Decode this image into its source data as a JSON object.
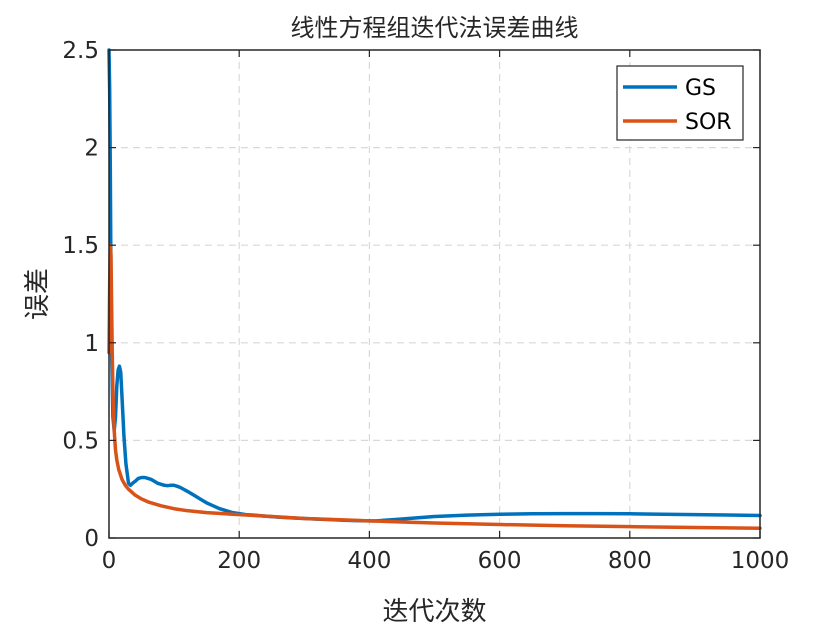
{
  "chart_data": {
    "type": "line",
    "title": "线性方程组迭代法误差曲线",
    "xlabel": "迭代次数",
    "ylabel": "误差",
    "xlim": [
      0,
      1000
    ],
    "ylim": [
      0,
      2.5
    ],
    "xticks": [
      "0",
      "200",
      "400",
      "600",
      "800",
      "1000"
    ],
    "yticks": [
      "0",
      "0.5",
      "1",
      "1.5",
      "2",
      "2.5"
    ],
    "grid": true,
    "legend_position": "top-right",
    "series": [
      {
        "name": "GS",
        "color": "#0072BD",
        "x": [
          0,
          1,
          2,
          3,
          4,
          6,
          8,
          10,
          12,
          14,
          16,
          18,
          20,
          23,
          26,
          30,
          33,
          36,
          40,
          45,
          50,
          55,
          60,
          65,
          70,
          75,
          80,
          85,
          90,
          95,
          100,
          105,
          110,
          120,
          130,
          140,
          150,
          160,
          170,
          180,
          190,
          200,
          210,
          220,
          240,
          260,
          280,
          300,
          320,
          340,
          360,
          380,
          400,
          410,
          420,
          440,
          460,
          480,
          500,
          550,
          600,
          650,
          700,
          750,
          800,
          850,
          900,
          950,
          1000
        ],
        "y": [
          2.5,
          2.3,
          1.9,
          1.35,
          0.95,
          0.62,
          0.55,
          0.62,
          0.78,
          0.86,
          0.88,
          0.85,
          0.72,
          0.52,
          0.38,
          0.28,
          0.27,
          0.28,
          0.29,
          0.305,
          0.31,
          0.31,
          0.305,
          0.3,
          0.29,
          0.28,
          0.275,
          0.27,
          0.268,
          0.27,
          0.27,
          0.265,
          0.258,
          0.24,
          0.22,
          0.2,
          0.18,
          0.165,
          0.15,
          0.14,
          0.13,
          0.125,
          0.12,
          0.118,
          0.112,
          0.107,
          0.103,
          0.1,
          0.097,
          0.094,
          0.091,
          0.089,
          0.088,
          0.088,
          0.09,
          0.095,
          0.1,
          0.105,
          0.11,
          0.117,
          0.122,
          0.124,
          0.125,
          0.125,
          0.124,
          0.122,
          0.12,
          0.118,
          0.115
        ]
      },
      {
        "name": "SOR",
        "color": "#D95319",
        "x": [
          0,
          1,
          2,
          3,
          4,
          5,
          6,
          8,
          10,
          12,
          15,
          20,
          25,
          30,
          40,
          50,
          60,
          80,
          100,
          120,
          150,
          200,
          250,
          300,
          350,
          400,
          450,
          500,
          600,
          700,
          800,
          900,
          1000
        ],
        "y": [
          0.95,
          1.3,
          1.5,
          1.45,
          1.2,
          0.95,
          0.75,
          0.55,
          0.45,
          0.4,
          0.35,
          0.3,
          0.27,
          0.25,
          0.22,
          0.2,
          0.185,
          0.165,
          0.15,
          0.14,
          0.13,
          0.12,
          0.11,
          0.1,
          0.094,
          0.088,
          0.082,
          0.077,
          0.069,
          0.063,
          0.058,
          0.054,
          0.05
        ]
      }
    ]
  }
}
